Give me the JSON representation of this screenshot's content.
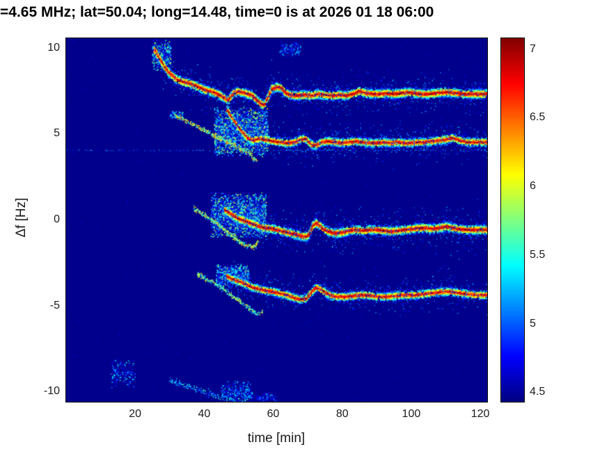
{
  "chart_data": {
    "type": "heatmap",
    "title": "=4.65 MHz;  lat=50.04; long=14.48, time=0 is at 2026 01 18 06:00",
    "xlabel": "time [min]",
    "ylabel": "Δf [Hz]",
    "colormap": "jet",
    "legend_position": "colorbar-right",
    "grid": false,
    "xlim": [
      0,
      122
    ],
    "ylim": [
      -10.6,
      10.55
    ],
    "clim": [
      4.43,
      7.08
    ],
    "xticks": [
      20,
      40,
      60,
      80,
      100,
      120
    ],
    "yticks": [
      10,
      5,
      0,
      -5,
      -10
    ],
    "colorbar_ticks": [
      7,
      6.5,
      6,
      5.5,
      5,
      4.5
    ],
    "background_color": "#00008d",
    "hline": {
      "f": 4.03,
      "t0": 0,
      "t1": 122,
      "step": 0.35,
      "prob": 0.5,
      "val": [
        4.75,
        5.35
      ],
      "size": 1.2
    },
    "noise": {
      "count": 700,
      "val": [
        4.45,
        4.85
      ]
    },
    "clouds": [
      {
        "name": "trace-a-onset-cloud",
        "t": [
          25,
          30.5
        ],
        "f": [
          8.6,
          10.5
        ],
        "count": 500,
        "val": [
          4.5,
          5.9
        ],
        "skew": 1.8
      },
      {
        "name": "top-small-cluster",
        "t": [
          62,
          68
        ],
        "f": [
          9.4,
          10.35
        ],
        "count": 170,
        "val": [
          4.5,
          5.4
        ],
        "skew": 2.0
      },
      {
        "name": "trace-b-scatter-cloud",
        "t": [
          43,
          58.5
        ],
        "f": [
          3.6,
          6.6
        ],
        "count": 3000,
        "val": [
          4.5,
          6.05
        ],
        "skew": 1.7
      },
      {
        "name": "trace-b-precursor-onset",
        "t": [
          30,
          34
        ],
        "f": [
          5.8,
          6.35
        ],
        "count": 100,
        "val": [
          4.5,
          5.6
        ],
        "skew": 2.0
      },
      {
        "name": "trace-c-scatter-cloud",
        "t": [
          42,
          58
        ],
        "f": [
          -1.1,
          1.6
        ],
        "count": 3200,
        "val": [
          4.5,
          6.0
        ],
        "skew": 1.8
      },
      {
        "name": "trace-d-scatter-cloud",
        "t": [
          43.5,
          53
        ],
        "f": [
          -3.95,
          -2.6
        ],
        "count": 1300,
        "val": [
          4.5,
          5.9
        ],
        "skew": 1.9
      },
      {
        "name": "bottom-left-patch",
        "t": [
          13,
          20
        ],
        "f": [
          -9.8,
          -8.1
        ],
        "count": 280,
        "val": [
          4.45,
          5.5
        ],
        "skew": 2.4
      },
      {
        "name": "bottom-cloud",
        "t": [
          45,
          53.5
        ],
        "f": [
          -10.6,
          -9.4
        ],
        "count": 420,
        "val": [
          4.45,
          5.5
        ],
        "skew": 2.2
      },
      {
        "name": "bottom-tail",
        "t": [
          53,
          61
        ],
        "f": [
          -10.65,
          -10.05
        ],
        "count": 150,
        "val": [
          4.45,
          5.3
        ],
        "skew": 2.2
      }
    ],
    "traces": [
      {
        "name": "trace-b-precursor",
        "style": "thin",
        "density": 16,
        "sigma": 0.07,
        "size": 1.5,
        "val": [
          5.2,
          6.5
        ],
        "pts": [
          [
            31,
            6.15
          ],
          [
            33,
            5.9
          ],
          [
            35,
            5.7
          ],
          [
            37,
            5.5
          ],
          [
            39,
            5.3
          ],
          [
            41,
            5.1
          ],
          [
            43,
            4.9
          ],
          [
            45,
            4.7
          ],
          [
            47,
            4.5
          ],
          [
            49,
            4.3
          ],
          [
            51,
            4.05
          ],
          [
            53,
            3.8
          ],
          [
            54.5,
            3.55
          ],
          [
            55.5,
            3.4
          ]
        ]
      },
      {
        "name": "trace-c-precursor",
        "style": "thin",
        "density": 16,
        "sigma": 0.07,
        "size": 1.5,
        "val": [
          5.2,
          6.4
        ],
        "pts": [
          [
            37,
            0.65
          ],
          [
            39,
            0.4
          ],
          [
            41,
            0.15
          ],
          [
            43,
            -0.1
          ],
          [
            45,
            -0.45
          ],
          [
            47,
            -0.8
          ],
          [
            49,
            -1.1
          ],
          [
            51,
            -1.4
          ],
          [
            52.5,
            -1.55
          ],
          [
            54,
            -1.6
          ],
          [
            55,
            -1.45
          ],
          [
            55.8,
            -1.25
          ]
        ]
      },
      {
        "name": "trace-d-precursor",
        "style": "thin",
        "density": 15,
        "sigma": 0.07,
        "size": 1.5,
        "val": [
          5.0,
          6.2
        ],
        "pts": [
          [
            38,
            -3.15
          ],
          [
            40,
            -3.4
          ],
          [
            42,
            -3.6
          ],
          [
            44,
            -3.85
          ],
          [
            46,
            -4.1
          ],
          [
            48,
            -4.4
          ],
          [
            50,
            -4.7
          ],
          [
            52,
            -5.0
          ],
          [
            53.5,
            -5.25
          ],
          [
            55,
            -5.45
          ],
          [
            56.2,
            -5.5
          ],
          [
            57,
            -5.3
          ]
        ]
      },
      {
        "name": "trace-e-faint-curve",
        "style": "thin",
        "density": 9,
        "sigma": 0.1,
        "size": 1.5,
        "val": [
          4.75,
          5.6
        ],
        "pts": [
          [
            30,
            -9.35
          ],
          [
            33,
            -9.55
          ],
          [
            36,
            -9.75
          ],
          [
            39,
            -9.95
          ],
          [
            42,
            -10.15
          ],
          [
            45,
            -10.35
          ],
          [
            47.5,
            -10.5
          ],
          [
            49.5,
            -10.6
          ],
          [
            51.5,
            -10.5
          ],
          [
            53,
            -10.25
          ],
          [
            54,
            -10.1
          ]
        ]
      },
      {
        "name": "trace-a-main",
        "style": "main",
        "density": 40,
        "sigma": 0.14,
        "size": 2.2,
        "val": [
          4.7,
          7.05
        ],
        "halo_density": 10,
        "halo_sigma": 0.55,
        "pts": [
          [
            25.5,
            9.9
          ],
          [
            27,
            9.4
          ],
          [
            28.5,
            8.9
          ],
          [
            30,
            8.5
          ],
          [
            32,
            8.15
          ],
          [
            34,
            8.0
          ],
          [
            36,
            7.9
          ],
          [
            38,
            7.75
          ],
          [
            40,
            7.55
          ],
          [
            42,
            7.45
          ],
          [
            44,
            7.3
          ],
          [
            45.5,
            7.1
          ],
          [
            47,
            6.95
          ],
          [
            48.5,
            7.35
          ],
          [
            50,
            7.45
          ],
          [
            52,
            7.35
          ],
          [
            54,
            7.2
          ],
          [
            56,
            6.8
          ],
          [
            57.5,
            6.65
          ],
          [
            58.5,
            7.1
          ],
          [
            59.5,
            7.6
          ],
          [
            61,
            7.7
          ],
          [
            62.5,
            7.65
          ],
          [
            63.5,
            7.35
          ],
          [
            65,
            7.25
          ],
          [
            67,
            7.2
          ],
          [
            69,
            7.25
          ],
          [
            71,
            7.2
          ],
          [
            73,
            7.3
          ],
          [
            75,
            7.25
          ],
          [
            77,
            7.2
          ],
          [
            79,
            7.25
          ],
          [
            81,
            7.2
          ],
          [
            83,
            7.3
          ],
          [
            85,
            7.45
          ],
          [
            87,
            7.35
          ],
          [
            89,
            7.3
          ],
          [
            91,
            7.3
          ],
          [
            93,
            7.35
          ],
          [
            95,
            7.3
          ],
          [
            97,
            7.35
          ],
          [
            99,
            7.4
          ],
          [
            101,
            7.35
          ],
          [
            103,
            7.3
          ],
          [
            105,
            7.3
          ],
          [
            107,
            7.35
          ],
          [
            109,
            7.4
          ],
          [
            111,
            7.4
          ],
          [
            113,
            7.35
          ],
          [
            115,
            7.3
          ],
          [
            117,
            7.3
          ],
          [
            119,
            7.3
          ],
          [
            121,
            7.3
          ],
          [
            122,
            7.3
          ]
        ]
      },
      {
        "name": "trace-b-main",
        "style": "main",
        "density": 38,
        "sigma": 0.13,
        "size": 2.2,
        "val": [
          4.7,
          7.0
        ],
        "halo_density": 12,
        "halo_sigma": 0.5,
        "pts": [
          [
            46.5,
            6.45
          ],
          [
            48,
            5.95
          ],
          [
            49.5,
            5.5
          ],
          [
            51,
            5.1
          ],
          [
            52.5,
            4.75
          ],
          [
            54,
            4.6
          ],
          [
            56,
            4.7
          ],
          [
            58,
            4.65
          ],
          [
            60,
            4.55
          ],
          [
            62,
            4.5
          ],
          [
            64,
            4.45
          ],
          [
            66,
            4.5
          ],
          [
            68,
            4.65
          ],
          [
            69.5,
            4.7
          ],
          [
            71,
            4.35
          ],
          [
            72.5,
            4.3
          ],
          [
            74,
            4.5
          ],
          [
            76,
            4.55
          ],
          [
            78,
            4.5
          ],
          [
            80,
            4.45
          ],
          [
            82,
            4.5
          ],
          [
            84,
            4.55
          ],
          [
            86,
            4.5
          ],
          [
            88,
            4.45
          ],
          [
            90,
            4.45
          ],
          [
            92,
            4.5
          ],
          [
            94,
            4.45
          ],
          [
            96,
            4.5
          ],
          [
            98,
            4.45
          ],
          [
            100,
            4.45
          ],
          [
            102,
            4.5
          ],
          [
            104,
            4.5
          ],
          [
            106,
            4.55
          ],
          [
            108,
            4.6
          ],
          [
            110,
            4.65
          ],
          [
            112,
            4.75
          ],
          [
            114,
            4.6
          ],
          [
            116,
            4.5
          ],
          [
            118,
            4.5
          ],
          [
            120,
            4.5
          ],
          [
            122,
            4.5
          ]
        ]
      },
      {
        "name": "trace-c-main",
        "style": "main",
        "density": 38,
        "sigma": 0.14,
        "size": 2.2,
        "val": [
          4.7,
          7.05
        ],
        "halo_density": 12,
        "halo_sigma": 0.55,
        "pts": [
          [
            46,
            0.55
          ],
          [
            47.5,
            0.35
          ],
          [
            49,
            0.15
          ],
          [
            50.5,
            0.0
          ],
          [
            52,
            -0.1
          ],
          [
            54,
            -0.25
          ],
          [
            56,
            -0.4
          ],
          [
            58,
            -0.5
          ],
          [
            60,
            -0.55
          ],
          [
            62,
            -0.65
          ],
          [
            64,
            -0.75
          ],
          [
            66,
            -0.85
          ],
          [
            68,
            -0.95
          ],
          [
            69.5,
            -1.0
          ],
          [
            70.5,
            -0.85
          ],
          [
            71.5,
            -0.35
          ],
          [
            72.5,
            -0.2
          ],
          [
            73.5,
            -0.35
          ],
          [
            74.5,
            -0.55
          ],
          [
            76,
            -0.7
          ],
          [
            78,
            -0.8
          ],
          [
            80,
            -0.75
          ],
          [
            82,
            -0.65
          ],
          [
            84,
            -0.6
          ],
          [
            86,
            -0.65
          ],
          [
            88,
            -0.6
          ],
          [
            90,
            -0.6
          ],
          [
            92,
            -0.65
          ],
          [
            94,
            -0.7
          ],
          [
            96,
            -0.65
          ],
          [
            98,
            -0.6
          ],
          [
            100,
            -0.55
          ],
          [
            102,
            -0.5
          ],
          [
            104,
            -0.5
          ],
          [
            106,
            -0.55
          ],
          [
            108,
            -0.5
          ],
          [
            110,
            -0.4
          ],
          [
            112,
            -0.5
          ],
          [
            114,
            -0.55
          ],
          [
            116,
            -0.6
          ],
          [
            118,
            -0.6
          ],
          [
            120,
            -0.6
          ],
          [
            122,
            -0.6
          ]
        ]
      },
      {
        "name": "trace-d-main",
        "style": "main",
        "density": 36,
        "sigma": 0.13,
        "size": 2.2,
        "val": [
          4.65,
          7.0
        ],
        "halo_density": 10,
        "halo_sigma": 0.5,
        "pts": [
          [
            46.5,
            -3.3
          ],
          [
            48,
            -3.45
          ],
          [
            50,
            -3.6
          ],
          [
            52,
            -3.75
          ],
          [
            54,
            -3.95
          ],
          [
            56,
            -4.05
          ],
          [
            58,
            -4.15
          ],
          [
            60,
            -4.2
          ],
          [
            62,
            -4.3
          ],
          [
            64,
            -4.4
          ],
          [
            66,
            -4.55
          ],
          [
            68,
            -4.65
          ],
          [
            69.5,
            -4.6
          ],
          [
            71,
            -4.25
          ],
          [
            72.5,
            -3.95
          ],
          [
            74,
            -4.1
          ],
          [
            75.5,
            -4.3
          ],
          [
            77,
            -4.45
          ],
          [
            79,
            -4.5
          ],
          [
            81,
            -4.5
          ],
          [
            83,
            -4.45
          ],
          [
            85,
            -4.4
          ],
          [
            87,
            -4.4
          ],
          [
            89,
            -4.45
          ],
          [
            91,
            -4.5
          ],
          [
            93,
            -4.5
          ],
          [
            95,
            -4.45
          ],
          [
            97,
            -4.4
          ],
          [
            99,
            -4.4
          ],
          [
            101,
            -4.4
          ],
          [
            103,
            -4.35
          ],
          [
            105,
            -4.3
          ],
          [
            107,
            -4.25
          ],
          [
            109,
            -4.2
          ],
          [
            111,
            -4.2
          ],
          [
            113,
            -4.25
          ],
          [
            115,
            -4.3
          ],
          [
            117,
            -4.35
          ],
          [
            119,
            -4.4
          ],
          [
            121,
            -4.4
          ],
          [
            122,
            -4.4
          ]
        ]
      }
    ]
  }
}
